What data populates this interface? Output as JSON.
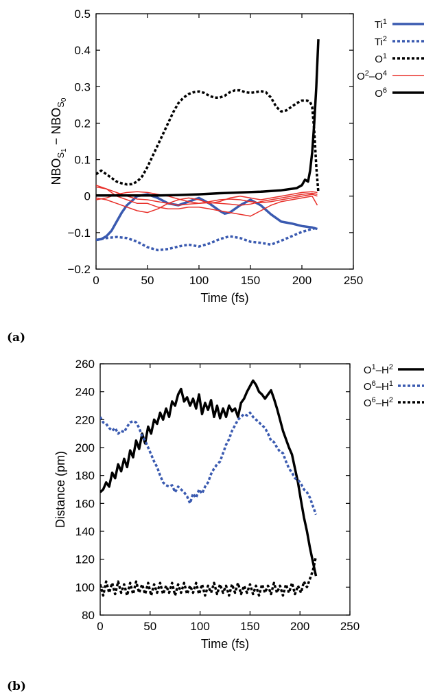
{
  "chart_data": [
    {
      "panel": "(a)",
      "type": "line",
      "title": "",
      "xlabel": "Time (fs)",
      "ylabel": "NBO",
      "ylabel_sub1": "S",
      "ylabel_subsub1": "1",
      "ylabel_sep": " − NBO",
      "ylabel_sub2": "S",
      "ylabel_subsub2": "0",
      "xlim": [
        0,
        250
      ],
      "ylim": [
        -0.2,
        0.5
      ],
      "xticks": [
        0,
        50,
        100,
        150,
        200,
        250
      ],
      "yticks": [
        -0.2,
        -0.1,
        0,
        0.1,
        0.2,
        0.3,
        0.4,
        0.5
      ],
      "ytick_labels": [
        "−0.2",
        "−0.1",
        "0",
        "0.1",
        "0.2",
        "0.3",
        "0.4",
        "0.5"
      ],
      "legend_position": "right",
      "series": [
        {
          "name": "Ti",
          "name_sup": "1",
          "color": "#3a5ab0",
          "dash": "solid",
          "width": 3.5,
          "x": [
            0,
            5,
            10,
            15,
            20,
            25,
            30,
            40,
            50,
            60,
            70,
            80,
            90,
            100,
            110,
            120,
            125,
            130,
            140,
            150,
            160,
            170,
            180,
            190,
            200,
            210,
            215
          ],
          "y": [
            -0.12,
            -0.118,
            -0.11,
            -0.095,
            -0.07,
            -0.045,
            -0.025,
            0.0,
            0.005,
            -0.005,
            -0.02,
            -0.025,
            -0.015,
            -0.005,
            -0.02,
            -0.04,
            -0.048,
            -0.045,
            -0.025,
            -0.01,
            -0.025,
            -0.05,
            -0.07,
            -0.075,
            -0.082,
            -0.086,
            -0.09
          ]
        },
        {
          "name": "Ti",
          "name_sup": "2",
          "color": "#3a5ab0",
          "dash": "dotted",
          "width": 3.5,
          "x": [
            0,
            5,
            10,
            20,
            30,
            40,
            50,
            60,
            70,
            80,
            90,
            100,
            110,
            120,
            130,
            140,
            150,
            160,
            170,
            180,
            190,
            200,
            210,
            215
          ],
          "y": [
            -0.12,
            -0.118,
            -0.115,
            -0.112,
            -0.115,
            -0.125,
            -0.14,
            -0.148,
            -0.145,
            -0.138,
            -0.133,
            -0.138,
            -0.13,
            -0.118,
            -0.11,
            -0.115,
            -0.125,
            -0.128,
            -0.133,
            -0.122,
            -0.11,
            -0.098,
            -0.09,
            -0.086
          ]
        },
        {
          "name": "O",
          "name_sup": "1",
          "color": "#000000",
          "dash": "dotted",
          "width": 3.5,
          "x": [
            0,
            5,
            10,
            15,
            20,
            25,
            30,
            35,
            40,
            45,
            50,
            55,
            60,
            65,
            70,
            75,
            80,
            85,
            90,
            95,
            100,
            105,
            110,
            115,
            120,
            125,
            130,
            135,
            140,
            145,
            150,
            155,
            160,
            165,
            170,
            175,
            180,
            185,
            190,
            195,
            200,
            205,
            208,
            210,
            212,
            214,
            216
          ],
          "y": [
            0.06,
            0.07,
            0.06,
            0.05,
            0.04,
            0.035,
            0.032,
            0.033,
            0.04,
            0.055,
            0.08,
            0.11,
            0.14,
            0.17,
            0.2,
            0.23,
            0.255,
            0.27,
            0.28,
            0.285,
            0.287,
            0.283,
            0.275,
            0.27,
            0.27,
            0.275,
            0.285,
            0.29,
            0.29,
            0.285,
            0.283,
            0.285,
            0.288,
            0.285,
            0.27,
            0.245,
            0.232,
            0.235,
            0.245,
            0.255,
            0.262,
            0.262,
            0.258,
            0.245,
            0.18,
            0.08,
            0.01
          ]
        },
        {
          "name": "O",
          "name_sup": "2",
          "name_sep": "–O",
          "name_sup2": "4",
          "color": "#e8302a",
          "dash": "solid",
          "width": 1.5,
          "x": [
            0,
            10,
            20,
            30,
            40,
            50,
            60,
            70,
            80,
            90,
            100,
            110,
            120,
            130,
            140,
            150,
            160,
            170,
            180,
            190,
            200,
            210,
            215
          ],
          "y": [
            0.03,
            0.02,
            0.0,
            -0.01,
            -0.02,
            -0.02,
            -0.03,
            -0.035,
            -0.035,
            -0.03,
            -0.03,
            -0.035,
            -0.04,
            -0.045,
            -0.05,
            -0.055,
            -0.04,
            -0.025,
            -0.015,
            -0.01,
            -0.005,
            0.0,
            -0.025
          ]
        },
        {
          "name": "",
          "color": "#e8302a",
          "dash": "solid",
          "width": 1.5,
          "x": [
            0,
            10,
            20,
            30,
            40,
            50,
            60,
            70,
            80,
            90,
            100,
            110,
            120,
            130,
            140,
            150,
            160,
            170,
            180,
            190,
            200,
            210,
            215
          ],
          "y": [
            0.025,
            0.02,
            0.01,
            0.0,
            -0.008,
            -0.01,
            -0.015,
            -0.02,
            -0.025,
            -0.022,
            -0.02,
            -0.018,
            -0.02,
            -0.022,
            -0.025,
            -0.022,
            -0.015,
            -0.01,
            -0.005,
            0.0,
            0.005,
            0.008,
            0.005
          ]
        },
        {
          "name": "",
          "color": "#e8302a",
          "dash": "solid",
          "width": 1.5,
          "x": [
            0,
            10,
            20,
            30,
            40,
            50,
            60,
            70,
            80,
            90,
            100,
            110,
            120,
            130,
            140,
            150,
            160,
            170,
            180,
            190,
            200,
            210,
            215
          ],
          "y": [
            -0.005,
            -0.01,
            -0.02,
            -0.03,
            -0.04,
            -0.045,
            -0.035,
            -0.02,
            -0.01,
            -0.005,
            -0.01,
            -0.02,
            -0.015,
            -0.005,
            0.0,
            -0.005,
            -0.01,
            -0.005,
            0.0,
            0.005,
            0.01,
            0.012,
            0.01
          ]
        },
        {
          "name": "",
          "color": "#e8302a",
          "dash": "solid",
          "width": 1.5,
          "x": [
            0,
            10,
            20,
            30,
            40,
            50,
            60,
            70,
            80,
            90,
            100,
            110,
            120,
            130,
            140,
            150,
            160,
            170,
            180,
            190,
            200,
            210,
            215
          ],
          "y": [
            -0.01,
            -0.005,
            0.005,
            0.01,
            0.012,
            0.01,
            0.005,
            0.0,
            -0.008,
            -0.015,
            -0.02,
            -0.015,
            -0.01,
            -0.008,
            -0.01,
            -0.015,
            -0.018,
            -0.015,
            -0.01,
            -0.005,
            0.0,
            0.005,
            0.0
          ]
        },
        {
          "name": "O",
          "name_sup": "6",
          "color": "#000000",
          "dash": "solid",
          "width": 3.5,
          "x": [
            0,
            20,
            40,
            60,
            80,
            100,
            120,
            140,
            160,
            170,
            180,
            190,
            195,
            200,
            203,
            206,
            208,
            210,
            212,
            214,
            216
          ],
          "y": [
            0.002,
            0.002,
            0.002,
            0.002,
            0.003,
            0.005,
            0.008,
            0.01,
            0.012,
            0.014,
            0.016,
            0.02,
            0.022,
            0.03,
            0.045,
            0.04,
            0.07,
            0.12,
            0.2,
            0.3,
            0.43
          ]
        }
      ]
    },
    {
      "panel": "(b)",
      "type": "line",
      "title": "",
      "xlabel": "Time (fs)",
      "ylabel": "Distance (pm)",
      "xlim": [
        0,
        250
      ],
      "ylim": [
        80,
        260
      ],
      "xticks": [
        0,
        50,
        100,
        150,
        200,
        250
      ],
      "yticks": [
        80,
        100,
        120,
        140,
        160,
        180,
        200,
        220,
        240,
        260
      ],
      "legend_position": "right",
      "series": [
        {
          "name": "O",
          "name_sup": "1",
          "name_sep": "–H",
          "name_sup2": "2",
          "color": "#000000",
          "dash": "solid",
          "width": 3.5,
          "x": [
            0,
            3,
            6,
            9,
            12,
            15,
            18,
            21,
            24,
            27,
            30,
            33,
            36,
            39,
            42,
            45,
            48,
            51,
            54,
            57,
            60,
            63,
            66,
            69,
            72,
            75,
            78,
            81,
            84,
            87,
            90,
            93,
            96,
            99,
            102,
            105,
            108,
            111,
            114,
            117,
            120,
            123,
            126,
            129,
            132,
            135,
            138,
            141,
            144,
            147,
            150,
            153,
            156,
            159,
            162,
            165,
            168,
            171,
            174,
            177,
            180,
            183,
            186,
            189,
            192,
            195,
            198,
            201,
            204,
            207,
            210,
            213,
            216
          ],
          "y": [
            168,
            170,
            175,
            172,
            182,
            178,
            188,
            183,
            192,
            186,
            198,
            193,
            205,
            199,
            210,
            203,
            215,
            210,
            220,
            217,
            225,
            220,
            228,
            222,
            233,
            230,
            238,
            242,
            233,
            236,
            230,
            235,
            228,
            238,
            224,
            232,
            227,
            234,
            222,
            230,
            221,
            228,
            222,
            230,
            226,
            228,
            222,
            232,
            235,
            240,
            244,
            248,
            245,
            240,
            238,
            235,
            238,
            241,
            235,
            228,
            220,
            212,
            206,
            200,
            195,
            185,
            175,
            162,
            150,
            140,
            128,
            118,
            108
          ]
        },
        {
          "name": "O",
          "name_sup": "6",
          "name_sep": "–H",
          "name_sup2": "1",
          "color": "#3a5ab0",
          "dash": "dotted",
          "width": 3.5,
          "x": [
            0,
            3,
            6,
            9,
            12,
            15,
            18,
            21,
            24,
            27,
            30,
            33,
            36,
            39,
            42,
            45,
            48,
            51,
            54,
            57,
            60,
            63,
            66,
            69,
            72,
            75,
            78,
            81,
            84,
            87,
            90,
            93,
            96,
            99,
            102,
            105,
            108,
            111,
            114,
            117,
            120,
            123,
            126,
            129,
            132,
            135,
            138,
            141,
            144,
            147,
            150,
            153,
            156,
            159,
            162,
            165,
            168,
            171,
            174,
            177,
            180,
            183,
            186,
            189,
            192,
            195,
            198,
            201,
            204,
            207,
            210,
            213,
            216
          ],
          "y": [
            222,
            218,
            217,
            214,
            212,
            214,
            210,
            212,
            211,
            215,
            218,
            219,
            218,
            214,
            208,
            205,
            200,
            195,
            190,
            186,
            180,
            175,
            173,
            172,
            173,
            168,
            172,
            170,
            168,
            165,
            160,
            167,
            164,
            170,
            167,
            172,
            175,
            181,
            185,
            188,
            190,
            196,
            202,
            206,
            212,
            216,
            220,
            222,
            224,
            223,
            225,
            222,
            220,
            218,
            216,
            214,
            210,
            205,
            204,
            200,
            197,
            196,
            190,
            185,
            182,
            178,
            177,
            174,
            170,
            168,
            164,
            158,
            152
          ]
        },
        {
          "name": "O",
          "name_sup": "6",
          "name_sep": "–H",
          "name_sup2": "2",
          "color": "#000000",
          "dash": "dotted",
          "width": 3.5,
          "x": [
            0,
            3,
            6,
            9,
            12,
            15,
            18,
            21,
            24,
            27,
            30,
            33,
            36,
            39,
            42,
            45,
            48,
            51,
            54,
            57,
            60,
            63,
            66,
            69,
            72,
            75,
            78,
            81,
            84,
            87,
            90,
            93,
            96,
            99,
            102,
            105,
            108,
            111,
            114,
            117,
            120,
            123,
            126,
            129,
            132,
            135,
            138,
            141,
            144,
            147,
            150,
            153,
            156,
            159,
            162,
            165,
            168,
            171,
            174,
            177,
            180,
            183,
            186,
            189,
            192,
            195,
            198,
            201,
            204,
            207,
            210,
            213,
            216
          ],
          "y": [
            102,
            94,
            104,
            96,
            103,
            95,
            104,
            96,
            102,
            94,
            103,
            95,
            104,
            96,
            102,
            95,
            103,
            94,
            102,
            96,
            103,
            95,
            101,
            96,
            103,
            94,
            102,
            96,
            103,
            95,
            101,
            96,
            103,
            95,
            102,
            94,
            101,
            96,
            103,
            95,
            102,
            96,
            101,
            94,
            102,
            96,
            103,
            95,
            101,
            96,
            102,
            95,
            101,
            94,
            102,
            96,
            101,
            95,
            103,
            96,
            101,
            94,
            102,
            96,
            103,
            95,
            101,
            96,
            104,
            100,
            106,
            112,
            122
          ]
        }
      ]
    }
  ]
}
